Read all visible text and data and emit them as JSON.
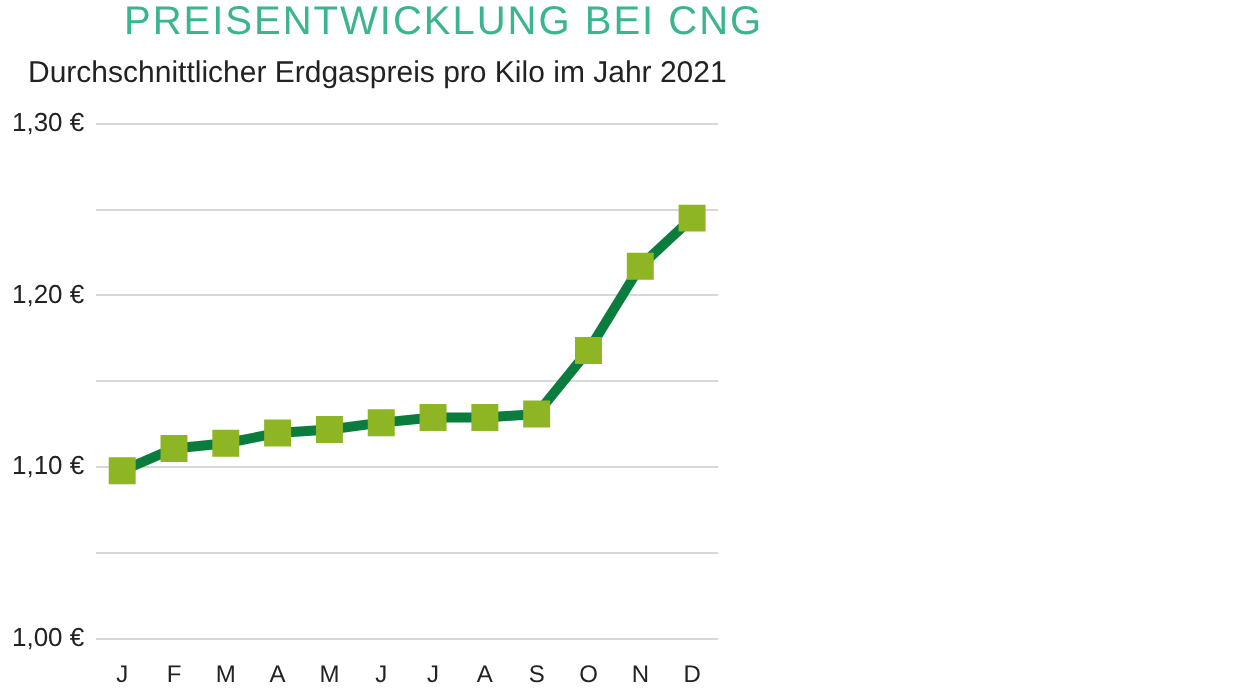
{
  "chart_data": {
    "type": "line",
    "title": "PREISENTWICKLUNG BEI CNG",
    "subtitle": "Durchschnittlicher Erdgaspreis pro Kilo im Jahr 2021",
    "categories": [
      "J",
      "F",
      "M",
      "A",
      "M",
      "J",
      "J",
      "A",
      "S",
      "O",
      "N",
      "D"
    ],
    "series": [
      {
        "color": "#0a7d3e",
        "colors": [
          "#8db524",
          "#8db524",
          "#8db524",
          "#8db524",
          "#8db524",
          "#8db524",
          "#8db524",
          "#8db524",
          "#8db524",
          "#8db524",
          "#8db524",
          "#8db524"
        ],
        "values": [
          1.098,
          1.111,
          1.114,
          1.12,
          1.122,
          1.126,
          1.129,
          1.129,
          1.131,
          1.168,
          1.217,
          1.245
        ]
      }
    ],
    "ylim": [
      1.0,
      1.3
    ],
    "yticks": [
      {
        "value": 1.0,
        "label": "1,00 €"
      },
      {
        "value": 1.05,
        "label": null
      },
      {
        "value": 1.1,
        "label": "1,10 €"
      },
      {
        "value": 1.15,
        "label": null
      },
      {
        "value": 1.2,
        "label": "1,20 €"
      },
      {
        "value": 1.25,
        "label": null
      },
      {
        "value": 1.3,
        "label": "1,30 €"
      }
    ],
    "grid": "y",
    "marker": "square",
    "legend": false
  }
}
